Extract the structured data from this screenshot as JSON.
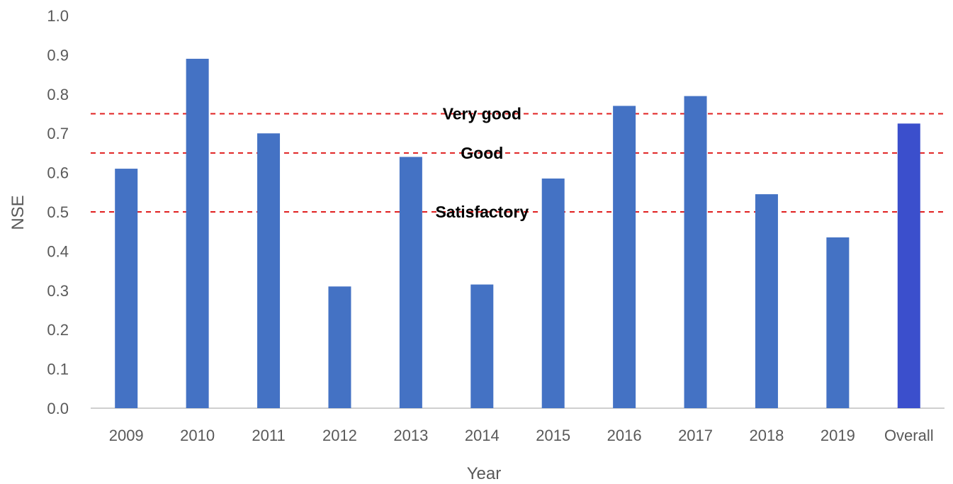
{
  "chart_data": {
    "type": "bar",
    "categories": [
      "2009",
      "2010",
      "2011",
      "2012",
      "2013",
      "2014",
      "2015",
      "2016",
      "2017",
      "2018",
      "2019",
      "Overall"
    ],
    "values": [
      0.61,
      0.89,
      0.7,
      0.31,
      0.64,
      0.315,
      0.585,
      0.77,
      0.795,
      0.545,
      0.435,
      0.725
    ],
    "xlabel": "Year",
    "ylabel": "NSE",
    "ylim": [
      0.0,
      1.0
    ],
    "yticks": [
      "0.0",
      "0.1",
      "0.2",
      "0.3",
      "0.4",
      "0.5",
      "0.6",
      "0.7",
      "0.8",
      "0.9",
      "1.0"
    ],
    "grid": false,
    "bar_color": "#4472C4",
    "highlight_color": "#3B4FCC",
    "thresholds": [
      {
        "label": "Very good",
        "value": 0.75,
        "color": "#E02020"
      },
      {
        "label": "Good",
        "value": 0.65,
        "color": "#E02020"
      },
      {
        "label": "Satisfactory",
        "value": 0.5,
        "color": "#E02020"
      }
    ]
  }
}
